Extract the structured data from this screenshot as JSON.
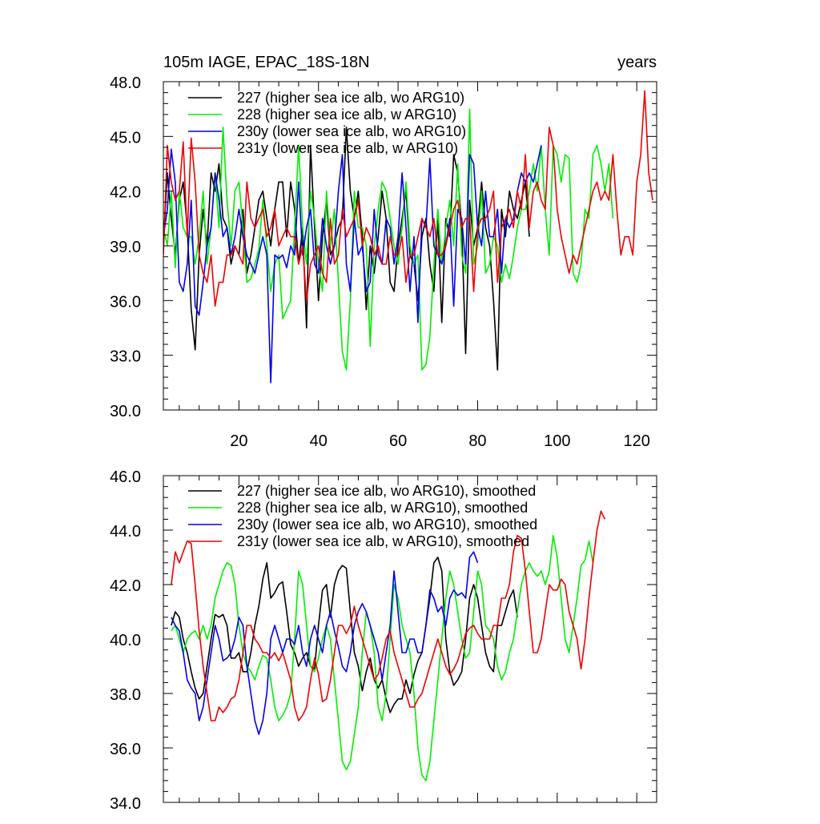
{
  "colors": {
    "s227": "#000000",
    "s228": "#00ee00",
    "s230": "#0000ee",
    "s231": "#ee0000"
  },
  "chart_data": [
    {
      "type": "line",
      "title_left": "105m IAGE, EPAC_18S-18N",
      "title_right": "years",
      "xlim": [
        1,
        125
      ],
      "ylim": [
        30,
        48
      ],
      "x_ticks": [
        20,
        40,
        60,
        80,
        100,
        120
      ],
      "x_tick_labels": [
        "20",
        "40",
        "60",
        "80",
        "100",
        "120"
      ],
      "y_ticks": [
        30,
        33,
        36,
        39,
        42,
        45,
        48
      ],
      "y_tick_labels": [
        "30.0",
        "33.0",
        "36.0",
        "39.0",
        "42.0",
        "45.0",
        "48.0"
      ],
      "legend_position": "top-left",
      "series": [
        {
          "name": "227 (higher sea ice alb, wo ARG10)",
          "color_key": "s227",
          "x_start": 1,
          "values": [
            39.2,
            43.0,
            40.5,
            38.5,
            41.5,
            42.5,
            40.0,
            35.5,
            33.3,
            38.5,
            41.0,
            39.0,
            43.0,
            42.0,
            43.5,
            40.5,
            40.0,
            38.0,
            39.0,
            38.5,
            41.0,
            37.5,
            38.5,
            40.0,
            41.5,
            42.0,
            40.5,
            39.0,
            41.0,
            42.5,
            42.5,
            39.5,
            42.5,
            41.0,
            38.0,
            40.0,
            34.5,
            44.5,
            40.0,
            36.0,
            39.5,
            41.5,
            38.5,
            39.0,
            40.0,
            40.5,
            45.5,
            42.0,
            40.5,
            42.0,
            39.5,
            35.5,
            39.0,
            37.5,
            39.5,
            42.0,
            40.5,
            37.0,
            36.5,
            39.0,
            40.5,
            42.0,
            38.5,
            38.0,
            36.0,
            39.5,
            40.5,
            38.0,
            36.5,
            40.5,
            34.8,
            40.5,
            39.5,
            44.0,
            43.0,
            40.0,
            33.1,
            41.5,
            39.0,
            40.0,
            42.5,
            40.0,
            39.0,
            36.0,
            32.2,
            41.0,
            39.5,
            42.0,
            41.0,
            40.5,
            41.5,
            42.5,
            39.5
          ]
        },
        {
          "name": "228 (higher sea ice alb, w ARG10)",
          "color_key": "s228",
          "x_start": 1,
          "values": [
            40.0,
            39.0,
            42.0,
            37.8,
            42.0,
            40.0,
            39.5,
            39.5,
            38.0,
            39.5,
            42.0,
            38.0,
            40.0,
            43.0,
            40.0,
            45.5,
            41.5,
            39.0,
            42.0,
            42.5,
            40.0,
            37.0,
            37.2,
            38.0,
            38.8,
            41.5,
            39.0,
            36.5,
            38.0,
            38.5,
            35.0,
            35.5,
            36.0,
            40.0,
            44.5,
            40.0,
            38.0,
            42.0,
            40.5,
            38.0,
            36.5,
            42.0,
            39.0,
            41.0,
            37.0,
            33.2,
            32.2,
            36.0,
            42.0,
            40.0,
            40.0,
            39.0,
            33.5,
            39.0,
            41.0,
            42.5,
            42.0,
            40.5,
            39.0,
            38.0,
            40.0,
            42.5,
            39.0,
            38.0,
            38.5,
            32.2,
            32.5,
            34.0,
            38.0,
            41.0,
            38.0,
            40.0,
            41.5,
            39.0,
            43.5,
            38.5,
            37.5,
            46.5,
            38.0,
            39.0,
            42.0,
            37.5,
            38.0,
            39.5,
            39.0,
            37.0,
            38.0,
            37.2,
            38.5,
            40.0,
            41.0,
            41.0,
            42.0,
            43.5,
            42.0,
            44.5,
            41.0,
            38.5,
            44.5,
            44.0,
            42.5,
            44.0,
            43.8,
            37.5,
            37.0,
            38.0,
            41.0,
            40.5,
            44.0,
            44.5,
            43.5,
            42.0,
            43.5,
            40.5
          ]
        },
        {
          "name": "230y (lower sea ice alb, wo ARG10)",
          "color_key": "s230",
          "x_start": 1,
          "values": [
            39.5,
            41.0,
            44.3,
            42.5,
            37.0,
            36.5,
            38.0,
            41.5,
            35.7,
            35.2,
            37.0,
            39.0,
            40.0,
            43.0,
            41.5,
            39.5,
            40.0,
            38.5,
            39.5,
            41.0,
            39.5,
            38.5,
            38.0,
            37.5,
            38.5,
            39.5,
            38.5,
            31.5,
            38.5,
            38.3,
            38.5,
            37.8,
            39.0,
            38.5,
            42.5,
            38.5,
            40.0,
            41.0,
            38.0,
            37.5,
            40.5,
            39.0,
            38.0,
            39.0,
            42.0,
            44.0,
            38.0,
            36.5,
            40.5,
            38.5,
            39.0,
            36.5,
            37.0,
            41.0,
            38.5,
            38.0,
            40.5,
            40.0,
            38.0,
            39.5,
            43.0,
            40.0,
            36.5,
            39.5,
            34.8,
            40.5,
            40.0,
            43.8,
            39.0,
            38.5,
            38.0,
            39.0,
            40.5,
            35.7,
            41.0,
            40.5,
            38.0,
            44.0,
            43.5,
            40.0,
            39.0,
            42.0,
            39.5,
            39.5,
            41.0,
            37.5,
            40.5,
            40.0,
            40.5,
            42.0,
            43.0,
            42.5,
            43.0,
            42.5,
            43.5,
            44.5
          ]
        },
        {
          "name": "231y (lower sea ice alb, w ARG10)",
          "color_key": "s231",
          "x_start": 1,
          "values": [
            38.5,
            44.5,
            42.5,
            41.5,
            42.0,
            44.7,
            39.5,
            44.9,
            42.5,
            38.5,
            37.5,
            37.0,
            38.5,
            35.7,
            37.0,
            37.0,
            38.5,
            38.5,
            39.0,
            38.5,
            38.0,
            42.5,
            40.5,
            40.0,
            40.5,
            41.0,
            39.5,
            40.0,
            41.0,
            39.0,
            39.5,
            40.0,
            39.5,
            39.5,
            38.0,
            39.0,
            36.0,
            38.0,
            38.5,
            39.0,
            37.5,
            37.0,
            40.5,
            38.0,
            38.5,
            41.0,
            39.5,
            40.0,
            40.5,
            41.5,
            39.0,
            40.0,
            39.5,
            38.5,
            39.0,
            38.0,
            38.0,
            39.5,
            38.5,
            38.5,
            39.5,
            37.0,
            38.5,
            38.5,
            39.5,
            40.5,
            40.0,
            39.5,
            40.5,
            38.5,
            38.5,
            39.0,
            40.0,
            41.0,
            41.5,
            40.0,
            40.5,
            40.5,
            36.5,
            40.0,
            40.5,
            40.5,
            41.0,
            42.0,
            37.0,
            40.0,
            40.5,
            41.0,
            40.0,
            42.0,
            41.0,
            44.0,
            40.0,
            42.0,
            42.5,
            41.5,
            41.0,
            45.5,
            44.5,
            41.0,
            39.5,
            38.5,
            37.5,
            38.5,
            38.0,
            39.0,
            40.0,
            41.0,
            42.0,
            42.5,
            41.5,
            42.0,
            41.5,
            44.0,
            41.0,
            38.5,
            39.5,
            39.5,
            38.5,
            42.5,
            44.0,
            47.5,
            43.0,
            41.5
          ]
        }
      ]
    },
    {
      "type": "line",
      "xlim": [
        1,
        125
      ],
      "ylim": [
        34,
        46
      ],
      "x_ticks": [
        20,
        40,
        60,
        80,
        100,
        120
      ],
      "y_ticks": [
        34,
        36,
        38,
        40,
        42,
        44,
        46
      ],
      "y_tick_labels": [
        "34.0",
        "36.0",
        "38.0",
        "40.0",
        "42.0",
        "44.0",
        "46.0"
      ],
      "legend_position": "top-left",
      "series": [
        {
          "name": "227 (higher sea ice alb, wo ARG10), smoothed",
          "color_key": "s227",
          "x_start": 3,
          "values": [
            40.5,
            41.0,
            40.8,
            40.0,
            39.5,
            38.8,
            38.2,
            37.8,
            38.0,
            39.0,
            40.0,
            40.9,
            40.8,
            40.9,
            40.5,
            39.3,
            39.3,
            39.5,
            38.8,
            38.8,
            39.5,
            40.5,
            41.2,
            42.2,
            42.8,
            41.5,
            41.7,
            42.0,
            42.1,
            41.0,
            39.8,
            39.5,
            39.0,
            39.3,
            39.5,
            39.0,
            38.9,
            40.5,
            41.8,
            42.0,
            40.8,
            42.0,
            42.5,
            42.7,
            42.6,
            41.0,
            39.5,
            39.0,
            38.1,
            38.8,
            39.3,
            38.5,
            38.2,
            38.5,
            37.8,
            37.3,
            37.6,
            37.8,
            37.8,
            38.5,
            38.0,
            38.7,
            39.2,
            39.5,
            40.5,
            41.5,
            42.8,
            43.0,
            42.5,
            40.0,
            38.8,
            38.3,
            38.5,
            38.8,
            40.0,
            41.5,
            42.0,
            41.5,
            40.5,
            39.5,
            39.0,
            38.8,
            40.5,
            40.5,
            41.0,
            41.5,
            41.8,
            40.8
          ]
        },
        {
          "name": "228 (higher sea ice alb, w ARG10), smoothed",
          "color_key": "s228",
          "x_start": 3,
          "values": [
            40.3,
            40.5,
            40.0,
            39.5,
            40.0,
            40.2,
            40.3,
            40.0,
            40.5,
            40.0,
            40.5,
            41.5,
            42.0,
            42.5,
            42.8,
            42.7,
            42.0,
            40.5,
            39.5,
            39.0,
            38.8,
            38.5,
            39.0,
            39.4,
            39.3,
            38.5,
            37.5,
            37.0,
            37.2,
            37.5,
            38.0,
            40.0,
            42.5,
            42.0,
            40.5,
            39.0,
            38.8,
            39.3,
            40.0,
            40.5,
            40.0,
            38.5,
            37.0,
            35.5,
            35.2,
            35.5,
            36.5,
            37.5,
            39.5,
            41.0,
            40.5,
            39.5,
            37.5,
            37.0,
            38.0,
            40.0,
            42.0,
            41.5,
            40.5,
            40.0,
            39.5,
            38.0,
            36.0,
            35.0,
            34.8,
            35.5,
            37.0,
            38.5,
            40.0,
            41.5,
            42.5,
            42.0,
            41.0,
            40.0,
            39.3,
            39.5,
            41.0,
            42.5,
            42.0,
            40.5,
            40.3,
            40.0,
            39.0,
            38.5,
            38.8,
            39.5,
            40.0,
            41.0,
            42.0,
            42.5,
            42.8,
            42.5,
            42.3,
            42.5,
            42.0,
            42.5,
            43.8,
            43.0,
            41.5,
            40.0,
            39.5,
            40.5,
            41.5,
            42.7,
            42.9,
            43.6,
            42.8
          ]
        },
        {
          "name": "230y (lower sea ice alb, wo ARG10), smoothed",
          "color_key": "s230",
          "x_start": 3,
          "values": [
            40.8,
            40.5,
            40.3,
            39.5,
            38.5,
            38.2,
            38.0,
            37.0,
            37.5,
            38.5,
            39.5,
            40.5,
            40.0,
            39.2,
            39.3,
            39.5,
            40.0,
            40.8,
            40.5,
            39.0,
            38.0,
            37.0,
            36.5,
            37.0,
            38.0,
            40.0,
            40.5,
            40.0,
            39.5,
            40.0,
            40.0,
            39.8,
            40.5,
            39.5,
            39.0,
            40.0,
            40.5,
            40.0,
            39.5,
            40.5,
            41.0,
            40.3,
            39.7,
            39.0,
            38.8,
            39.5,
            40.5,
            41.0,
            41.3,
            41.0,
            40.5,
            40.0,
            39.5,
            38.5,
            39.5,
            40.5,
            42.5,
            41.0,
            39.5,
            39.5,
            40.0,
            40.0,
            39.5,
            39.5,
            40.5,
            41.8,
            41.5,
            41.0,
            41.2,
            40.5,
            41.5,
            41.8,
            41.6,
            41.7,
            41.5,
            43.0,
            43.2,
            42.8
          ]
        },
        {
          "name": "231y (lower sea ice alb, w ARG10), smoothed",
          "color_key": "s231",
          "x_start": 3,
          "values": [
            42.0,
            43.2,
            42.8,
            43.2,
            43.6,
            43.5,
            42.0,
            40.3,
            39.0,
            38.0,
            37.0,
            37.0,
            37.5,
            37.3,
            37.5,
            37.8,
            37.9,
            38.5,
            39.5,
            40.5,
            40.5,
            40.0,
            39.8,
            39.5,
            39.5,
            39.3,
            39.5,
            39.2,
            39.5,
            39.0,
            38.5,
            37.5,
            37.0,
            37.2,
            37.5,
            38.5,
            39.3,
            38.7,
            37.7,
            37.8,
            38.5,
            39.5,
            40.5,
            40.5,
            40.2,
            40.5,
            41.2,
            40.5,
            40.0,
            39.5,
            39.0,
            38.5,
            38.7,
            39.3,
            40.0,
            40.3,
            39.5,
            39.0,
            38.5,
            38.0,
            37.5,
            37.5,
            37.8,
            38.0,
            38.5,
            39.0,
            39.5,
            40.0,
            39.5,
            39.0,
            38.7,
            38.9,
            39.2,
            39.7,
            40.2,
            40.4,
            40.5,
            40.2,
            40.0,
            40.0,
            40.0,
            40.5,
            40.5,
            41.5,
            41.5,
            42.0,
            43.2,
            43.8,
            43.7,
            42.5,
            41.0,
            39.5,
            39.5,
            40.0,
            41.0,
            42.0,
            41.8,
            41.8,
            42.2,
            42.0,
            41.0,
            40.5,
            40.0,
            38.9,
            40.0,
            41.5,
            42.8,
            44.0,
            44.7,
            44.4
          ]
        }
      ]
    }
  ]
}
